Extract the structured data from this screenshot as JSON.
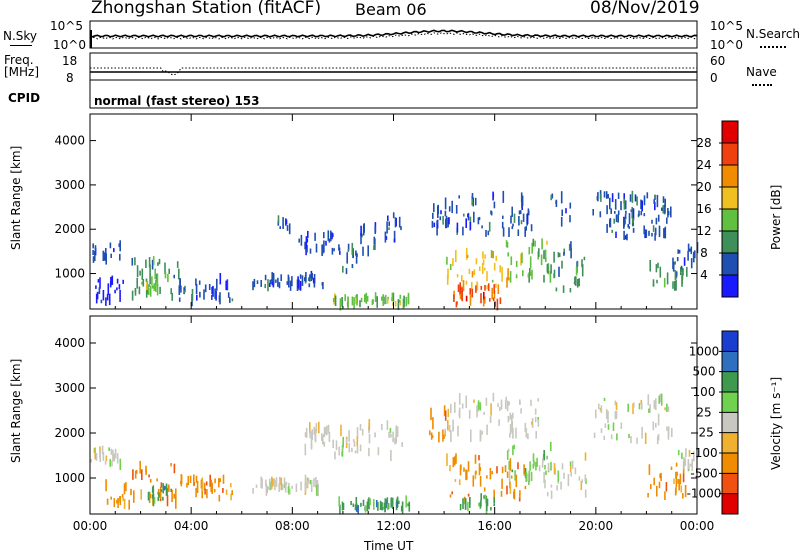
{
  "header": {
    "title": "Zhongshan Station (fitACF)",
    "beam": "Beam 06",
    "date": "08/Nov/2019"
  },
  "top_panels": {
    "nsky_label": "N.Sky",
    "nsearch_label": "N.Search",
    "nsky_ticks": [
      "10^5",
      "10^0"
    ],
    "nsearch_ticks": [
      "10^5",
      "10^0"
    ],
    "freq_label_1": "Freq.",
    "freq_label_2": "[MHz]",
    "freq_ticks": [
      "18",
      "8"
    ],
    "nave_label": "Nave",
    "nave_ticks": [
      "60",
      "0"
    ],
    "cpid_label": "CPID",
    "cpid_value": "normal (fast stereo) 153"
  },
  "chart_data": [
    {
      "type": "heatmap",
      "title": "",
      "xlabel": "",
      "ylabel": "Slant Range [km]",
      "x_ticks": [
        "00:00",
        "04:00",
        "08:00",
        "12:00",
        "16:00",
        "20:00",
        "00:00"
      ],
      "y_ticks": [
        1000,
        2000,
        3000,
        4000
      ],
      "ylim": [
        200,
        4600
      ],
      "xlim_hours": [
        0,
        24
      ],
      "colorbar": {
        "label": "Power [dB]",
        "ticks": [
          "4",
          "8",
          "12",
          "16",
          "20",
          "24",
          "28"
        ],
        "colors": [
          "#1a1aff",
          "#1f4fb0",
          "#3f8f5a",
          "#60c040",
          "#f0c020",
          "#f08c00",
          "#f04010",
          "#e00000"
        ]
      },
      "regions": [
        {
          "t": [
            0.0,
            1.2
          ],
          "r": [
            1300,
            1650
          ],
          "level": 1
        },
        {
          "t": [
            0.2,
            1.5
          ],
          "r": [
            350,
            900
          ],
          "level": 0
        },
        {
          "t": [
            1.6,
            3.5
          ],
          "r": [
            450,
            1300
          ],
          "level": 2
        },
        {
          "t": [
            2.2,
            3.2
          ],
          "r": [
            600,
            1000
          ],
          "level": 3
        },
        {
          "t": [
            3.5,
            5.6
          ],
          "r": [
            400,
            900
          ],
          "level": 1
        },
        {
          "t": [
            6.4,
            9.2
          ],
          "r": [
            700,
            950
          ],
          "level": 1
        },
        {
          "t": [
            7.4,
            7.9
          ],
          "r": [
            2000,
            2300
          ],
          "level": 1
        },
        {
          "t": [
            8.2,
            9.6
          ],
          "r": [
            1500,
            1900
          ],
          "level": 1
        },
        {
          "t": [
            9.6,
            10.6
          ],
          "r": [
            1050,
            1600
          ],
          "level": 1
        },
        {
          "t": [
            10.6,
            11.4
          ],
          "r": [
            1500,
            2100
          ],
          "level": 1
        },
        {
          "t": [
            11.6,
            12.4
          ],
          "r": [
            1700,
            2350
          ],
          "level": 1
        },
        {
          "t": [
            9.6,
            12.6
          ],
          "r": [
            300,
            480
          ],
          "level": 3
        },
        {
          "t": [
            13.4,
            14.2
          ],
          "r": [
            1900,
            2500
          ],
          "level": 1
        },
        {
          "t": [
            14.0,
            16.6
          ],
          "r": [
            600,
            1450
          ],
          "level": 4
        },
        {
          "t": [
            14.3,
            16.2
          ],
          "r": [
            300,
            700
          ],
          "level": 6
        },
        {
          "t": [
            14.0,
            17.8
          ],
          "r": [
            1900,
            2800
          ],
          "level": 1
        },
        {
          "t": [
            16.4,
            18.2
          ],
          "r": [
            900,
            1700
          ],
          "level": 3
        },
        {
          "t": [
            17.8,
            19.6
          ],
          "r": [
            600,
            1500
          ],
          "level": 2
        },
        {
          "t": [
            18.2,
            19.0
          ],
          "r": [
            1400,
            2800
          ],
          "level": 1
        },
        {
          "t": [
            19.8,
            23.0
          ],
          "r": [
            2300,
            2800
          ],
          "level": 1
        },
        {
          "t": [
            20.4,
            22.8
          ],
          "r": [
            1800,
            2300
          ],
          "level": 1
        },
        {
          "t": [
            22.0,
            23.6
          ],
          "r": [
            600,
            1300
          ],
          "level": 2
        },
        {
          "t": [
            23.2,
            24.0
          ],
          "r": [
            1200,
            1600
          ],
          "level": 1
        }
      ]
    },
    {
      "type": "heatmap",
      "title": "",
      "xlabel": "Time UT",
      "ylabel": "Slant Range [km]",
      "x_ticks": [
        "00:00",
        "04:00",
        "08:00",
        "12:00",
        "16:00",
        "20:00",
        "00:00"
      ],
      "y_ticks": [
        1000,
        2000,
        3000,
        4000
      ],
      "ylim": [
        200,
        4600
      ],
      "xlim_hours": [
        0,
        24
      ],
      "colorbar": {
        "label": "Velocity [m s⁻¹]",
        "ticks": [
          "1000",
          "500",
          "100",
          "25",
          "-25",
          "-100",
          "-500",
          "-1000"
        ],
        "colors": [
          "#1a3fd0",
          "#2f6fc0",
          "#3f9a50",
          "#70d050",
          "#c8c8c0",
          "#f0b030",
          "#f08c00",
          "#f05010",
          "#e00000"
        ]
      },
      "regions": [
        {
          "t": [
            0.0,
            1.2
          ],
          "r": [
            1300,
            1650
          ],
          "level": 4
        },
        {
          "t": [
            0.6,
            1.6
          ],
          "r": [
            400,
            900
          ],
          "level": 6
        },
        {
          "t": [
            1.6,
            3.5
          ],
          "r": [
            450,
            1300
          ],
          "level": 6
        },
        {
          "t": [
            2.2,
            3.2
          ],
          "r": [
            500,
            800
          ],
          "level": 2
        },
        {
          "t": [
            3.5,
            5.6
          ],
          "r": [
            500,
            1000
          ],
          "level": 6
        },
        {
          "t": [
            6.4,
            9.2
          ],
          "r": [
            700,
            950
          ],
          "level": 4
        },
        {
          "t": [
            8.2,
            12.4
          ],
          "r": [
            1500,
            2200
          ],
          "level": 4
        },
        {
          "t": [
            9.6,
            12.6
          ],
          "r": [
            300,
            480
          ],
          "level": 2
        },
        {
          "t": [
            13.4,
            14.2
          ],
          "r": [
            1900,
            2500
          ],
          "level": 6
        },
        {
          "t": [
            14.0,
            17.2
          ],
          "r": [
            500,
            1500
          ],
          "level": 6
        },
        {
          "t": [
            14.6,
            16.0
          ],
          "r": [
            300,
            600
          ],
          "level": 2
        },
        {
          "t": [
            14.0,
            17.8
          ],
          "r": [
            1900,
            2800
          ],
          "level": 4
        },
        {
          "t": [
            16.4,
            18.2
          ],
          "r": [
            900,
            1700
          ],
          "level": 3
        },
        {
          "t": [
            17.8,
            19.6
          ],
          "r": [
            600,
            1500
          ],
          "level": 4
        },
        {
          "t": [
            19.8,
            23.0
          ],
          "r": [
            1800,
            2800
          ],
          "level": 4
        },
        {
          "t": [
            22.0,
            23.6
          ],
          "r": [
            600,
            1300
          ],
          "level": 6
        },
        {
          "t": [
            23.2,
            24.0
          ],
          "r": [
            1200,
            1600
          ],
          "level": 4
        }
      ]
    }
  ],
  "x_axis_title": "Time UT"
}
